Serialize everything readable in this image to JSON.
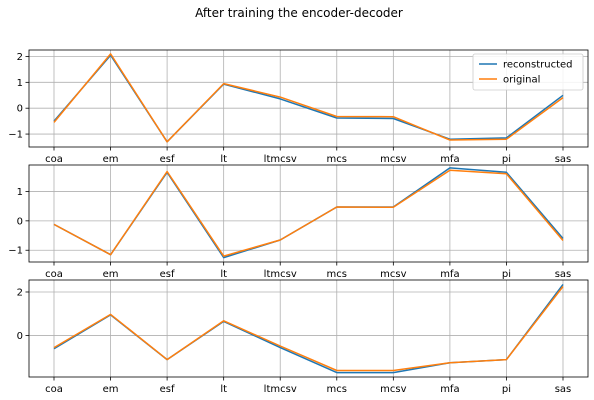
{
  "figure": {
    "title": "After training the encoder-decoder"
  },
  "chart_data": [
    {
      "type": "line",
      "categories": [
        "coa",
        "em",
        "esf",
        "lt",
        "ltmcsv",
        "mcs",
        "mcsv",
        "mfa",
        "pi",
        "sas"
      ],
      "series": [
        {
          "name": "reconstructed",
          "color": "#1f77b4",
          "values": [
            -0.5,
            2.05,
            -1.3,
            0.93,
            0.36,
            -0.38,
            -0.4,
            -1.2,
            -1.15,
            0.5
          ]
        },
        {
          "name": "original",
          "color": "#ff7f0e",
          "values": [
            -0.55,
            2.1,
            -1.3,
            0.95,
            0.43,
            -0.32,
            -0.33,
            -1.23,
            -1.2,
            0.41
          ]
        }
      ],
      "ylim": [
        -1.5,
        2.25
      ],
      "yticks": [
        -1,
        0,
        1,
        2
      ],
      "ytick_labels": [
        "−1",
        "0",
        "1",
        "2"
      ],
      "grid": true,
      "legend": "upper-right"
    },
    {
      "type": "line",
      "categories": [
        "coa",
        "em",
        "esf",
        "lt",
        "ltmcsv",
        "mcs",
        "mcsv",
        "mfa",
        "pi",
        "sas"
      ],
      "series": [
        {
          "name": "reconstructed",
          "color": "#1f77b4",
          "values": [
            -0.12,
            -1.15,
            1.65,
            -1.25,
            -0.65,
            0.47,
            0.47,
            1.8,
            1.65,
            -0.6
          ]
        },
        {
          "name": "original",
          "color": "#ff7f0e",
          "values": [
            -0.12,
            -1.15,
            1.68,
            -1.2,
            -0.65,
            0.47,
            0.46,
            1.72,
            1.6,
            -0.67
          ]
        }
      ],
      "ylim": [
        -1.4,
        1.9
      ],
      "yticks": [
        -1,
        0,
        1
      ],
      "ytick_labels": [
        "−1",
        "0",
        "1"
      ],
      "grid": true
    },
    {
      "type": "line",
      "categories": [
        "coa",
        "em",
        "esf",
        "lt",
        "ltmcsv",
        "mcs",
        "mcsv",
        "mfa",
        "pi",
        "sas"
      ],
      "series": [
        {
          "name": "reconstructed",
          "color": "#1f77b4",
          "values": [
            -0.6,
            0.95,
            -1.1,
            0.65,
            -0.55,
            -1.7,
            -1.7,
            -1.25,
            -1.1,
            2.35
          ]
        },
        {
          "name": "original",
          "color": "#ff7f0e",
          "values": [
            -0.55,
            0.97,
            -1.1,
            0.68,
            -0.48,
            -1.6,
            -1.6,
            -1.25,
            -1.1,
            2.25
          ]
        }
      ],
      "ylim": [
        -1.9,
        2.55
      ],
      "yticks": [
        0,
        2
      ],
      "ytick_labels": [
        "0",
        "2"
      ],
      "grid": true
    }
  ]
}
